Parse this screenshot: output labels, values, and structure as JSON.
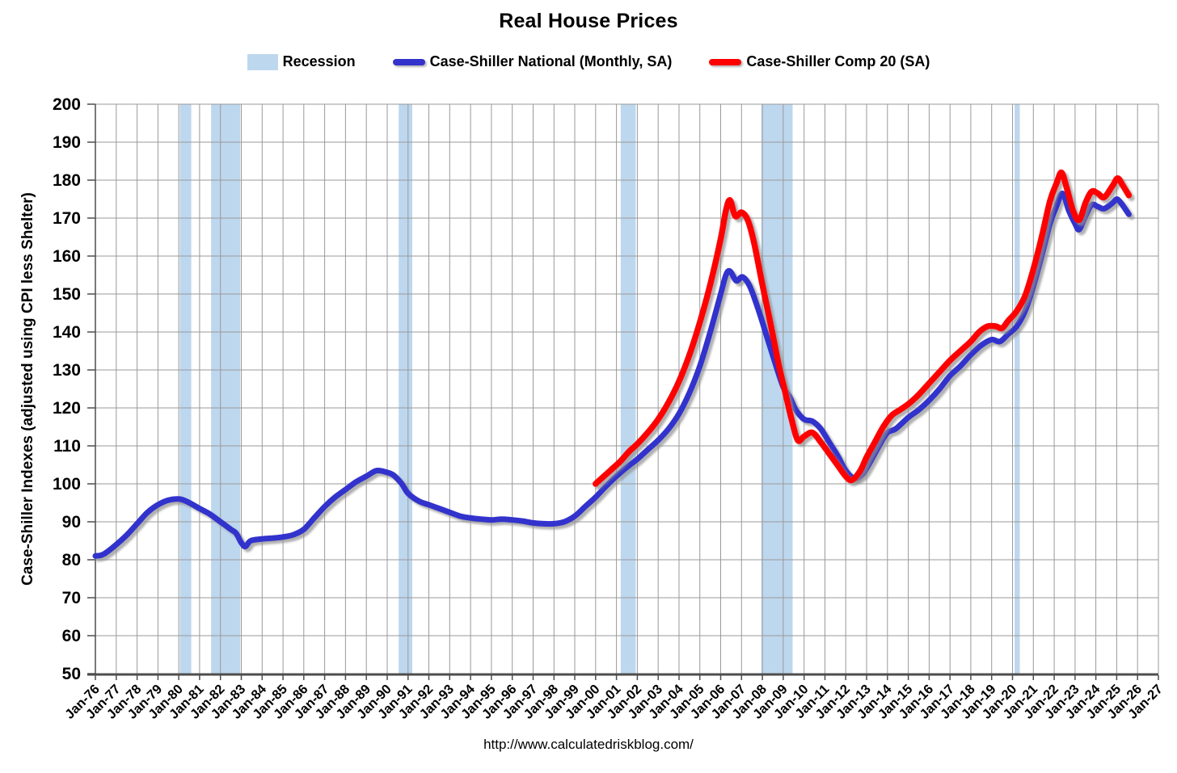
{
  "title": "Real House Prices",
  "source_url": "http://www.calculatedriskblog.com/",
  "legend": [
    {
      "label": "Recession",
      "type": "patch",
      "color": "#bdd7ee"
    },
    {
      "label": "Case-Shiller National (Monthly, SA)",
      "type": "line",
      "color": "#3333cc"
    },
    {
      "label": "Case-Shiller Comp 20  (SA)",
      "type": "line",
      "color": "#ff0000"
    }
  ],
  "colors": {
    "background": "#ffffff",
    "gridline": "#9a9a9a",
    "axis": "#4d4d4d",
    "recession_band": "#bdd7ee",
    "national_line": "#3333cc",
    "comp20_line": "#ff0000",
    "text": "#000000"
  },
  "chart_data": {
    "type": "line",
    "title": "Real House Prices",
    "xlabel": "",
    "ylabel": "Case-Shiller Indexes (adjusted using CPI less Shelter)",
    "ylim": [
      50,
      200
    ],
    "yticks": [
      200,
      190,
      180,
      170,
      160,
      150,
      140,
      130,
      120,
      110,
      100,
      90,
      80,
      70,
      60,
      50
    ],
    "xlim": [
      1976,
      2027
    ],
    "xtick_labels": [
      "Jan-76",
      "Jan-77",
      "Jan-78",
      "Jan-79",
      "Jan-80",
      "Jan-81",
      "Jan-82",
      "Jan-83",
      "Jan-84",
      "Jan-85",
      "Jan-86",
      "Jan-87",
      "Jan-88",
      "Jan-89",
      "Jan-90",
      "Jan-91",
      "Jan-92",
      "Jan-93",
      "Jan-94",
      "Jan-95",
      "Jan-96",
      "Jan-97",
      "Jan-98",
      "Jan-99",
      "Jan-00",
      "Jan-01",
      "Jan-02",
      "Jan-03",
      "Jan-04",
      "Jan-05",
      "Jan-06",
      "Jan-07",
      "Jan-08",
      "Jan-09",
      "Jan-10",
      "Jan-11",
      "Jan-12",
      "Jan-13",
      "Jan-14",
      "Jan-15",
      "Jan-16",
      "Jan-17",
      "Jan-18",
      "Jan-19",
      "Jan-20",
      "Jan-21",
      "Jan-22",
      "Jan-23",
      "Jan-24",
      "Jan-25",
      "Jan-26",
      "Jan-27"
    ],
    "grid": "both",
    "legend_position": "top",
    "recessions": [
      [
        1980.05,
        1980.6
      ],
      [
        1981.55,
        1982.95
      ],
      [
        1990.55,
        1991.2
      ],
      [
        2001.2,
        2001.92
      ],
      [
        2007.95,
        2009.45
      ],
      [
        2020.1,
        2020.35
      ]
    ],
    "series": [
      {
        "name": "Case-Shiller National (Monthly, SA)",
        "color": "#3333cc",
        "width": 7,
        "points": [
          [
            1976.0,
            81
          ],
          [
            1976.4,
            81.5
          ],
          [
            1977.0,
            84
          ],
          [
            1977.5,
            86.5
          ],
          [
            1978.0,
            89.5
          ],
          [
            1978.5,
            92.5
          ],
          [
            1979.0,
            94.5
          ],
          [
            1979.5,
            95.7
          ],
          [
            1980.0,
            96
          ],
          [
            1980.4,
            95.3
          ],
          [
            1981.0,
            93.5
          ],
          [
            1981.5,
            92
          ],
          [
            1982.0,
            90
          ],
          [
            1982.5,
            88
          ],
          [
            1982.75,
            87
          ],
          [
            1983.0,
            84.5
          ],
          [
            1983.2,
            83.5
          ],
          [
            1983.45,
            85
          ],
          [
            1984.0,
            85.5
          ],
          [
            1984.5,
            85.7
          ],
          [
            1985.0,
            86
          ],
          [
            1985.5,
            86.6
          ],
          [
            1986.0,
            88
          ],
          [
            1986.5,
            91
          ],
          [
            1987.0,
            94
          ],
          [
            1987.5,
            96.5
          ],
          [
            1988.0,
            98.5
          ],
          [
            1988.5,
            100.5
          ],
          [
            1989.0,
            102
          ],
          [
            1989.5,
            103.5
          ],
          [
            1990.0,
            103
          ],
          [
            1990.3,
            102.3
          ],
          [
            1990.7,
            100
          ],
          [
            1991.0,
            97.5
          ],
          [
            1991.5,
            95.5
          ],
          [
            1992.0,
            94.5
          ],
          [
            1992.5,
            93.5
          ],
          [
            1993.0,
            92.5
          ],
          [
            1993.5,
            91.5
          ],
          [
            1994.0,
            91
          ],
          [
            1994.5,
            90.7
          ],
          [
            1995.0,
            90.5
          ],
          [
            1995.5,
            90.7
          ],
          [
            1996.0,
            90.5
          ],
          [
            1996.5,
            90.2
          ],
          [
            1997.0,
            89.7
          ],
          [
            1997.5,
            89.5
          ],
          [
            1998.0,
            89.5
          ],
          [
            1998.5,
            90
          ],
          [
            1999.0,
            91.5
          ],
          [
            1999.5,
            94
          ],
          [
            2000.0,
            96.5
          ],
          [
            2000.4,
            98.8
          ],
          [
            2000.8,
            101
          ],
          [
            2001.2,
            103
          ],
          [
            2001.6,
            104.8
          ],
          [
            2002.0,
            106.5
          ],
          [
            2002.5,
            109
          ],
          [
            2003.0,
            111.5
          ],
          [
            2003.5,
            114.5
          ],
          [
            2004.0,
            118.5
          ],
          [
            2004.5,
            124
          ],
          [
            2005.0,
            131
          ],
          [
            2005.5,
            140
          ],
          [
            2006.0,
            150
          ],
          [
            2006.25,
            155
          ],
          [
            2006.45,
            156
          ],
          [
            2006.75,
            153.5
          ],
          [
            2007.05,
            154.5
          ],
          [
            2007.4,
            152
          ],
          [
            2007.8,
            146
          ],
          [
            2008.2,
            139
          ],
          [
            2008.6,
            132
          ],
          [
            2009.0,
            125.5
          ],
          [
            2009.3,
            123
          ],
          [
            2009.6,
            119.5
          ],
          [
            2010.0,
            117
          ],
          [
            2010.4,
            116.5
          ],
          [
            2010.8,
            114.5
          ],
          [
            2011.2,
            111
          ],
          [
            2011.6,
            107.5
          ],
          [
            2012.0,
            103.5
          ],
          [
            2012.4,
            101.5
          ],
          [
            2012.8,
            102.5
          ],
          [
            2013.2,
            106
          ],
          [
            2013.6,
            110
          ],
          [
            2014.0,
            113.5
          ],
          [
            2014.4,
            114.5
          ],
          [
            2015.0,
            117.5
          ],
          [
            2015.5,
            119.5
          ],
          [
            2016.0,
            122
          ],
          [
            2016.5,
            125
          ],
          [
            2017.0,
            128.5
          ],
          [
            2017.5,
            131
          ],
          [
            2018.0,
            134
          ],
          [
            2018.5,
            136.5
          ],
          [
            2019.0,
            138
          ],
          [
            2019.4,
            137.5
          ],
          [
            2019.8,
            139.5
          ],
          [
            2020.2,
            141.5
          ],
          [
            2020.6,
            145.5
          ],
          [
            2021.0,
            152
          ],
          [
            2021.4,
            160
          ],
          [
            2021.8,
            168.5
          ],
          [
            2022.1,
            173
          ],
          [
            2022.4,
            176.5
          ],
          [
            2022.7,
            172
          ],
          [
            2023.0,
            168.5
          ],
          [
            2023.2,
            167
          ],
          [
            2023.5,
            170.5
          ],
          [
            2023.8,
            173.5
          ],
          [
            2024.1,
            173
          ],
          [
            2024.4,
            172.5
          ],
          [
            2024.8,
            174
          ],
          [
            2025.0,
            175
          ],
          [
            2025.2,
            174
          ],
          [
            2025.4,
            172.5
          ],
          [
            2025.58,
            171
          ]
        ]
      },
      {
        "name": "Case-Shiller Comp 20  (SA)",
        "color": "#ff0000",
        "width": 7.5,
        "points": [
          [
            2000.0,
            100
          ],
          [
            2000.4,
            102
          ],
          [
            2000.8,
            104
          ],
          [
            2001.2,
            106
          ],
          [
            2001.6,
            108.5
          ],
          [
            2002.0,
            110.5
          ],
          [
            2002.5,
            113.5
          ],
          [
            2003.0,
            117
          ],
          [
            2003.5,
            121.5
          ],
          [
            2004.0,
            127
          ],
          [
            2004.5,
            134
          ],
          [
            2005.0,
            142.5
          ],
          [
            2005.5,
            152.5
          ],
          [
            2006.0,
            164.5
          ],
          [
            2006.25,
            172
          ],
          [
            2006.45,
            174.7
          ],
          [
            2006.7,
            170.5
          ],
          [
            2007.0,
            171.5
          ],
          [
            2007.3,
            169.5
          ],
          [
            2007.6,
            163.5
          ],
          [
            2008.0,
            152.5
          ],
          [
            2008.4,
            142
          ],
          [
            2008.8,
            131
          ],
          [
            2009.1,
            124
          ],
          [
            2009.4,
            117
          ],
          [
            2009.7,
            111.5
          ],
          [
            2010.0,
            112.5
          ],
          [
            2010.4,
            113.5
          ],
          [
            2010.8,
            111
          ],
          [
            2011.2,
            108
          ],
          [
            2011.6,
            105
          ],
          [
            2012.0,
            102
          ],
          [
            2012.3,
            101
          ],
          [
            2012.7,
            103.5
          ],
          [
            2013.0,
            107
          ],
          [
            2013.4,
            111
          ],
          [
            2013.8,
            115
          ],
          [
            2014.2,
            118
          ],
          [
            2014.6,
            119.5
          ],
          [
            2015.0,
            121
          ],
          [
            2015.5,
            123.5
          ],
          [
            2016.0,
            126.5
          ],
          [
            2016.5,
            129.5
          ],
          [
            2017.0,
            132.5
          ],
          [
            2017.5,
            135
          ],
          [
            2018.0,
            137.5
          ],
          [
            2018.4,
            140
          ],
          [
            2018.8,
            141.5
          ],
          [
            2019.2,
            141.5
          ],
          [
            2019.5,
            141
          ],
          [
            2019.8,
            143
          ],
          [
            2020.2,
            145.5
          ],
          [
            2020.6,
            149.5
          ],
          [
            2021.0,
            156.5
          ],
          [
            2021.4,
            165
          ],
          [
            2021.8,
            174.5
          ],
          [
            2022.1,
            179
          ],
          [
            2022.35,
            182
          ],
          [
            2022.6,
            178
          ],
          [
            2022.9,
            172
          ],
          [
            2023.2,
            169.5
          ],
          [
            2023.5,
            174
          ],
          [
            2023.8,
            177
          ],
          [
            2024.1,
            176.5
          ],
          [
            2024.4,
            175.5
          ],
          [
            2024.8,
            178.5
          ],
          [
            2025.05,
            180.5
          ],
          [
            2025.3,
            178.5
          ],
          [
            2025.58,
            176
          ]
        ]
      }
    ]
  }
}
